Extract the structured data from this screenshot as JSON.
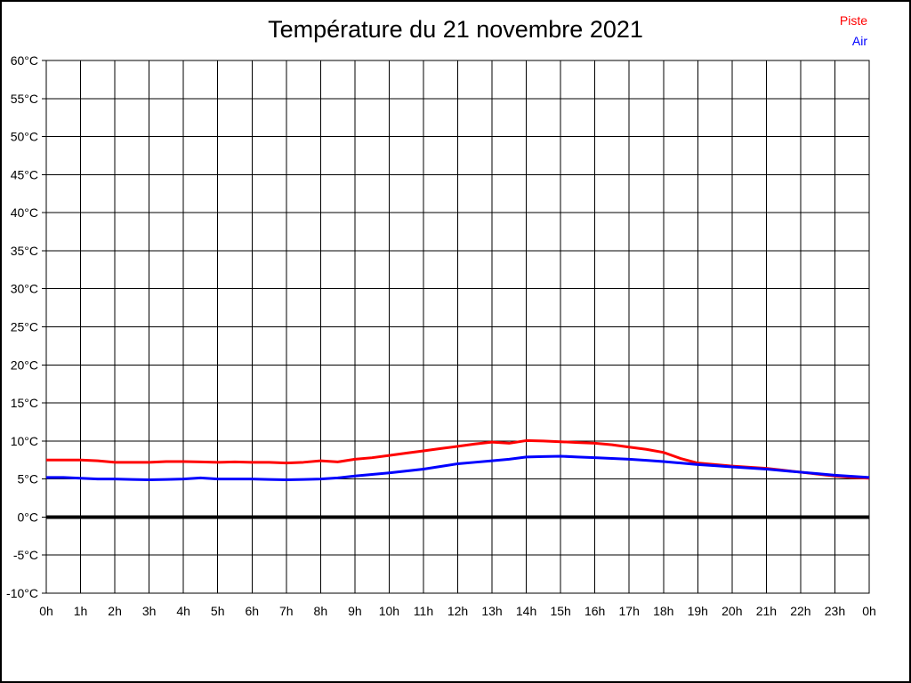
{
  "title": "Température du 21 novembre 2021",
  "legend": {
    "items": [
      {
        "label": "Piste",
        "color": "#ff0000"
      },
      {
        "label": "Air",
        "color": "#0000ff"
      }
    ]
  },
  "chart_data": {
    "type": "line",
    "title": "Température du 21 novembre 2021",
    "xlabel": "",
    "ylabel": "",
    "xlim": [
      0,
      24
    ],
    "ylim": [
      -10,
      60
    ],
    "grid": true,
    "legend_position": "top-right",
    "x_tick_positions": [
      0,
      1,
      2,
      3,
      4,
      5,
      6,
      7,
      8,
      9,
      10,
      11,
      12,
      13,
      14,
      15,
      16,
      17,
      18,
      19,
      20,
      21,
      22,
      23,
      24
    ],
    "x_tick_labels": [
      "0h",
      "1h",
      "2h",
      "3h",
      "4h",
      "5h",
      "6h",
      "7h",
      "8h",
      "9h",
      "10h",
      "11h",
      "12h",
      "13h",
      "14h",
      "15h",
      "16h",
      "17h",
      "18h",
      "19h",
      "20h",
      "21h",
      "22h",
      "23h",
      "0h"
    ],
    "y_tick_positions": [
      60,
      55,
      50,
      45,
      40,
      35,
      30,
      25,
      20,
      15,
      10,
      5,
      0,
      -5,
      -10
    ],
    "y_tick_labels": [
      "60°C",
      "55°C",
      "50°C",
      "45°C",
      "40°C",
      "35°C",
      "30°C",
      "25°C",
      "20°C",
      "15°C",
      "10°C",
      "5°C",
      "0°C",
      "-5°C",
      "-10°C"
    ],
    "zero_line": {
      "value": 0,
      "color": "#000000",
      "width": 4
    },
    "x": [
      0,
      0.5,
      1,
      1.5,
      2,
      2.5,
      3,
      3.5,
      4,
      4.5,
      5,
      5.5,
      6,
      6.5,
      7,
      7.5,
      8,
      8.5,
      9,
      9.5,
      10,
      10.5,
      11,
      11.5,
      12,
      12.5,
      13,
      13.5,
      14,
      14.5,
      15,
      15.5,
      16,
      16.5,
      17,
      17.5,
      18,
      18.5,
      19,
      19.5,
      20,
      20.5,
      21,
      21.5,
      22,
      22.5,
      23,
      23.5,
      24
    ],
    "series": [
      {
        "name": "Piste",
        "color": "#ff0000",
        "values": [
          7.5,
          7.5,
          7.5,
          7.4,
          7.2,
          7.2,
          7.2,
          7.3,
          7.3,
          7.25,
          7.2,
          7.25,
          7.2,
          7.2,
          7.1,
          7.2,
          7.4,
          7.25,
          7.6,
          7.8,
          8.1,
          8.4,
          8.7,
          9.0,
          9.3,
          9.6,
          9.85,
          9.7,
          10.05,
          10.0,
          9.9,
          9.8,
          9.7,
          9.5,
          9.2,
          8.9,
          8.5,
          7.7,
          7.1,
          6.9,
          6.7,
          6.55,
          6.4,
          6.15,
          5.9,
          5.65,
          5.4,
          5.2,
          5.1
        ]
      },
      {
        "name": "Air",
        "color": "#0000ff",
        "values": [
          5.2,
          5.2,
          5.1,
          5.0,
          5.0,
          4.95,
          4.9,
          4.95,
          5.0,
          5.15,
          5.0,
          5.0,
          5.0,
          4.95,
          4.9,
          4.95,
          5.0,
          5.15,
          5.4,
          5.6,
          5.8,
          6.05,
          6.3,
          6.65,
          7.0,
          7.2,
          7.4,
          7.6,
          7.9,
          7.95,
          8.0,
          7.9,
          7.8,
          7.7,
          7.6,
          7.45,
          7.3,
          7.1,
          6.9,
          6.75,
          6.6,
          6.45,
          6.3,
          6.1,
          5.9,
          5.7,
          5.5,
          5.35,
          5.2
        ]
      }
    ]
  }
}
